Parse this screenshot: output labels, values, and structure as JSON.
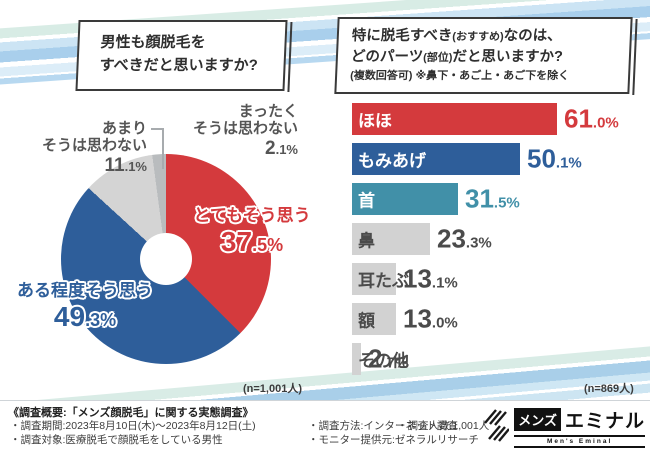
{
  "colors": {
    "red": "#d43a3d",
    "blue": "#2e5e9a",
    "teal": "#4190a8",
    "gray_bar": "#d2d2d2",
    "gray_sliver": "#b9bcbe",
    "text_dark": "#2f2f2f",
    "text_gray": "#555555",
    "stripe_blue": "#a9cfec",
    "stripe_pale_blue": "#cce4f4",
    "stripe_pale_teal": "#d8ece5"
  },
  "header": {
    "left": {
      "line1": "男性も顔脱毛を",
      "line2": "すべきだと思いますか?"
    },
    "right": {
      "seg1": "特に脱毛すべき",
      "seg2": "(おすすめ)",
      "seg3": "なのは、",
      "seg4": "どのパーツ",
      "seg5": "(部位)",
      "seg6": "だと思いますか?",
      "line3": "(複数回答可) ※鼻下・あご上・あご下を除く"
    }
  },
  "chart_data": [
    {
      "type": "pie",
      "title": "男性も顔脱毛をすべきだと思いますか?",
      "n_label": "(n=1,001人)",
      "donut": true,
      "start_angle_deg": 0,
      "direction": "clockwise",
      "segments": [
        {
          "label": "とてもそう思う",
          "value": 37.5,
          "color": "#d43a3d",
          "display": {
            "int": "37",
            "frac": ".5%"
          }
        },
        {
          "label": "ある程度そう思う",
          "value": 49.3,
          "color": "#2e5e9a",
          "display": {
            "int": "49",
            "frac": ".3%"
          }
        },
        {
          "label": "あまりそうは思わない",
          "value": 11.1,
          "color": "#d4d4d4",
          "display": {
            "line1": "あまり",
            "line2": "そうは思わない",
            "int": "11",
            "frac": ".1%"
          }
        },
        {
          "label": "まったくそうは思わない",
          "value": 2.1,
          "color": "#b9bcbe",
          "display": {
            "line1": "まったく",
            "line2": "そうは思わない",
            "int": "2",
            "frac": ".1%"
          }
        }
      ]
    },
    {
      "type": "bar",
      "title": "特に脱毛すべき(おすすめ)なのは、どのパーツ(部位)だと思いますか?(複数回答可) ※鼻下・あご上・あご下を除く",
      "n_label": "(n=869人)",
      "orientation": "horizontal",
      "xlim": [
        0,
        70
      ],
      "categories": [
        "ほほ",
        "もみあげ",
        "首",
        "鼻",
        "耳たぶ",
        "額",
        "その他"
      ],
      "values": [
        61.0,
        50.1,
        31.5,
        23.3,
        13.1,
        13.0,
        2.7
      ],
      "bar_colors": [
        "#d43a3d",
        "#2e5e9a",
        "#4190a8",
        "#d2d2d2",
        "#d2d2d2",
        "#d2d2d2",
        "#d2d2d2"
      ],
      "label_colors": [
        "#ffffff",
        "#ffffff",
        "#ffffff",
        "#4b4b4b",
        "#4b4b4b",
        "#4b4b4b",
        "#4b4b4b"
      ],
      "value_colors": [
        "#d43a3d",
        "#2e5e9a",
        "#4190a8",
        "#4b4b4b",
        "#4b4b4b",
        "#4b4b4b",
        "#4b4b4b"
      ]
    }
  ],
  "footer": {
    "heading": "《調査概要:「メンズ顔脱毛」に関する実態調査》",
    "period": "・調査期間:2023年8月10日(木)〜2023年8月12日(土)",
    "target": "・調査対象:医療脱毛で顔脱毛をしている男性",
    "method": "・調査方法:インターネット調査",
    "monitor": "・モニター提供元:ゼネラルリサーチ",
    "count": "・調査人数:1,001人",
    "logo": {
      "jp_box": "メンズ",
      "jp_rest": "エミナル",
      "en": "Men's Eminal"
    }
  }
}
